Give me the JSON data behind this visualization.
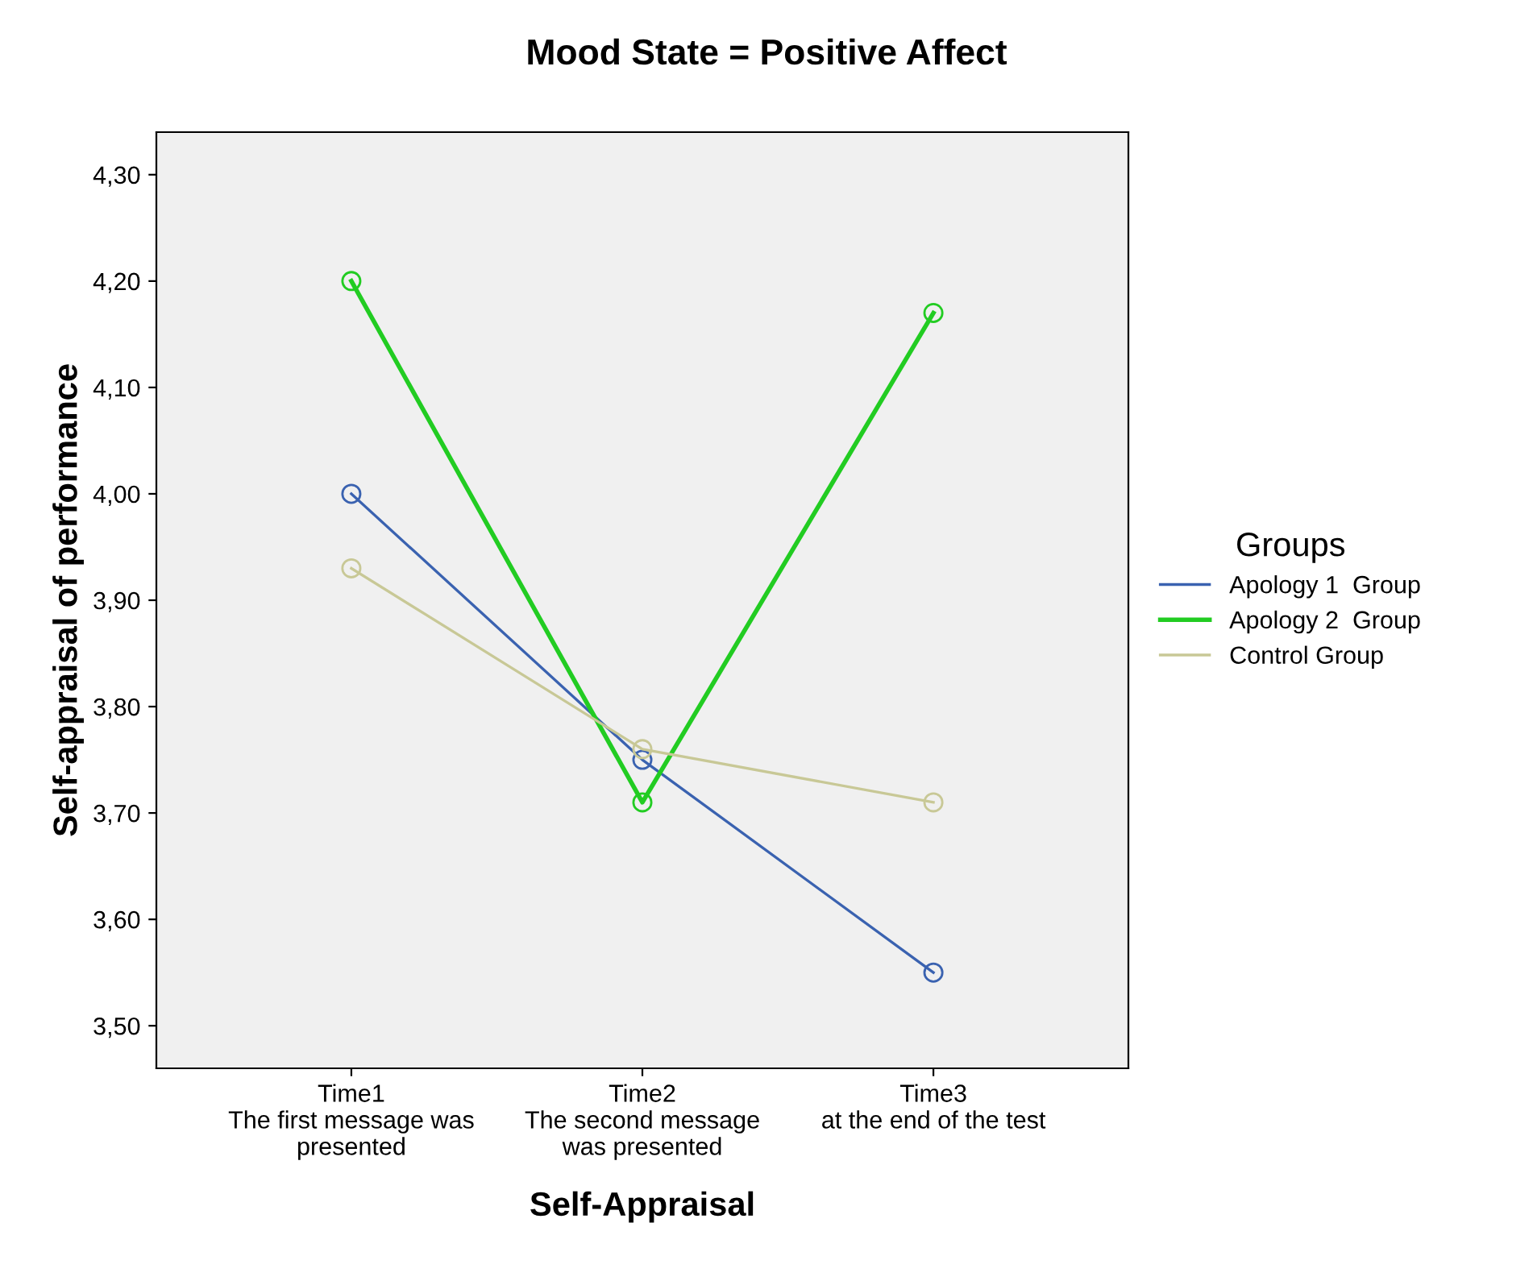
{
  "chart_data": {
    "type": "line",
    "title": "Mood State = Positive Affect",
    "xlabel": "Self-Appraisal",
    "ylabel": "Self-appraisal of performance",
    "legend_title": "Groups",
    "categories": [
      "Time1\nThe first message was\npresented",
      "Time2\nThe second message\nwas presented",
      "Time3\nat the end of the test"
    ],
    "series": [
      {
        "name": "Apology 1  Group",
        "color": "#3a62b0",
        "values": [
          4.0,
          3.75,
          3.55
        ]
      },
      {
        "name": "Apology 2  Group",
        "color": "#22cc22",
        "values": [
          4.2,
          3.71,
          4.17
        ]
      },
      {
        "name": "Control Group",
        "color": "#c8c896",
        "values": [
          3.93,
          3.76,
          3.71
        ]
      }
    ],
    "ylim": [
      3.46,
      4.34
    ],
    "yticks": [
      {
        "value": 3.5,
        "label": "3,50"
      },
      {
        "value": 3.6,
        "label": "3,60"
      },
      {
        "value": 3.7,
        "label": "3,70"
      },
      {
        "value": 3.8,
        "label": "3,80"
      },
      {
        "value": 3.9,
        "label": "3,90"
      },
      {
        "value": 4.0,
        "label": "4,00"
      },
      {
        "value": 4.1,
        "label": "4,10"
      },
      {
        "value": 4.2,
        "label": "4,20"
      },
      {
        "value": 4.3,
        "label": "4,30"
      }
    ],
    "marker": "circle",
    "legend": "right",
    "grid": false
  }
}
